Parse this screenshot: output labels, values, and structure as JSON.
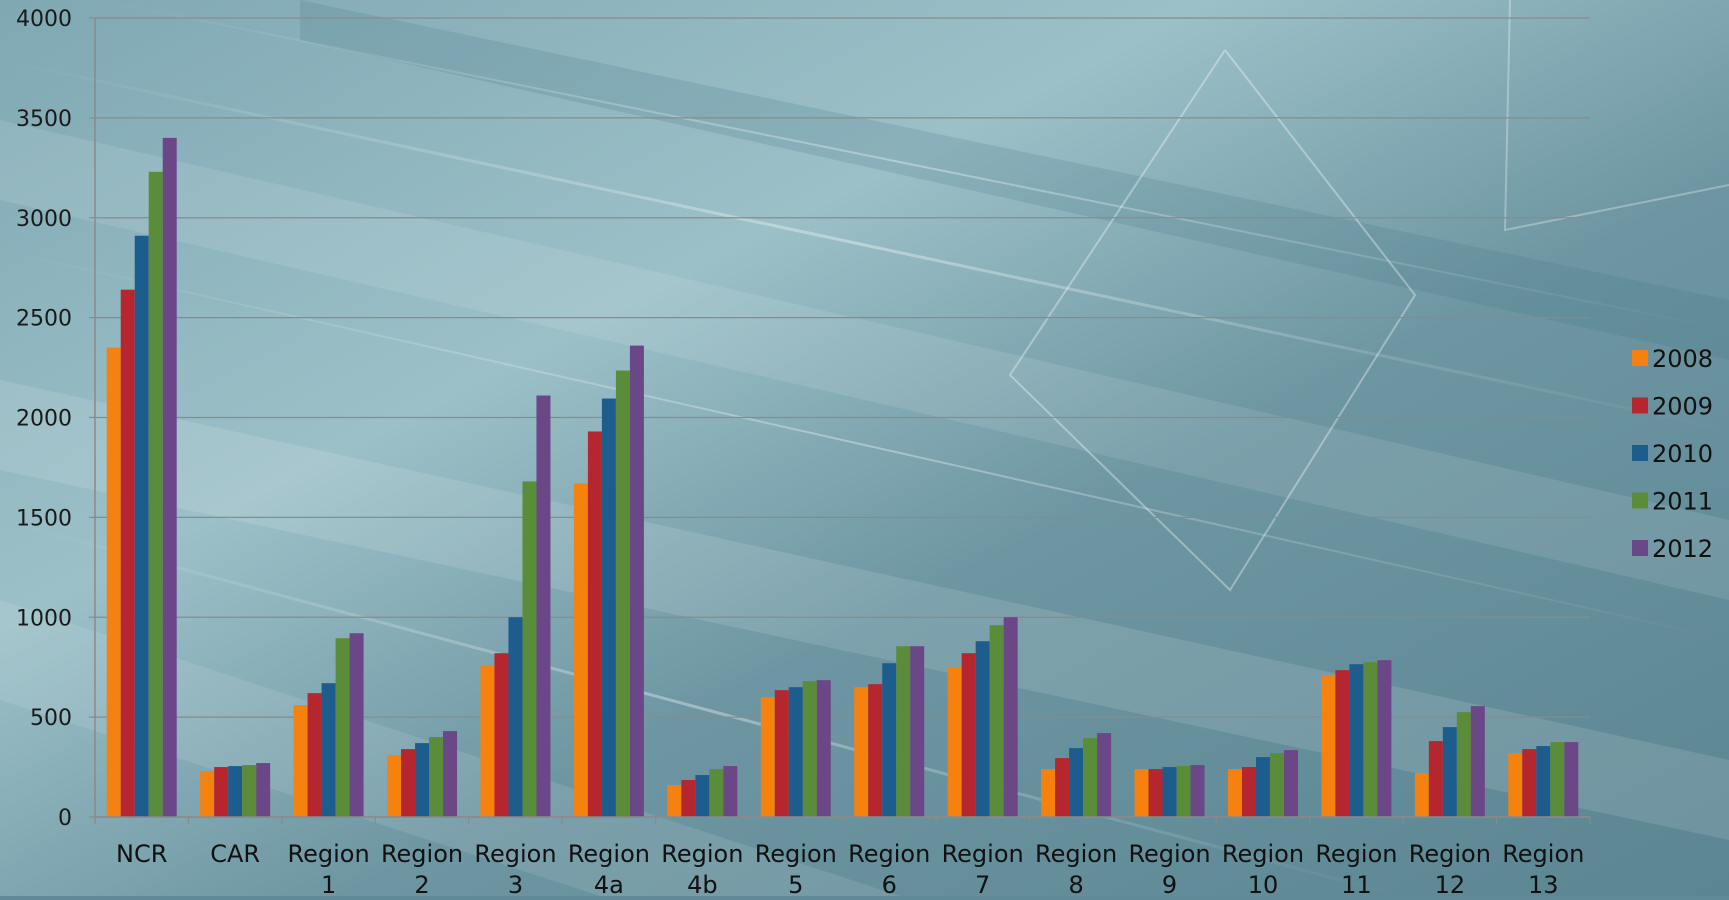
{
  "chart_data": {
    "type": "bar",
    "categories": [
      [
        "NCR"
      ],
      [
        "CAR"
      ],
      [
        "Region",
        "1"
      ],
      [
        "Region",
        "2"
      ],
      [
        "Region",
        "3"
      ],
      [
        "Region",
        "4a"
      ],
      [
        "Region",
        "4b"
      ],
      [
        "Region",
        "5"
      ],
      [
        "Region",
        "6"
      ],
      [
        "Region",
        "7"
      ],
      [
        "Region",
        "8"
      ],
      [
        "Region",
        "9"
      ],
      [
        "Region",
        "10"
      ],
      [
        "Region",
        "11"
      ],
      [
        "Region",
        "12"
      ],
      [
        "Region",
        "13"
      ]
    ],
    "series": [
      {
        "name": "2008",
        "color": "#f5820f",
        "values": [
          2350,
          230,
          560,
          310,
          760,
          1670,
          160,
          600,
          650,
          750,
          240,
          240,
          240,
          710,
          220,
          320
        ]
      },
      {
        "name": "2009",
        "color": "#b5262e",
        "values": [
          2640,
          250,
          620,
          340,
          820,
          1930,
          185,
          635,
          665,
          820,
          295,
          240,
          250,
          735,
          380,
          340
        ]
      },
      {
        "name": "2010",
        "color": "#1d5d8e",
        "values": [
          2910,
          255,
          670,
          370,
          1000,
          2095,
          210,
          650,
          770,
          880,
          345,
          250,
          300,
          765,
          450,
          355
        ]
      },
      {
        "name": "2011",
        "color": "#5b8c3a",
        "values": [
          3230,
          260,
          895,
          400,
          1680,
          2235,
          240,
          680,
          855,
          960,
          395,
          255,
          320,
          775,
          525,
          375
        ]
      },
      {
        "name": "2012",
        "color": "#6b4787",
        "values": [
          3400,
          270,
          920,
          430,
          2110,
          2360,
          255,
          685,
          855,
          1000,
          420,
          260,
          335,
          785,
          555,
          375
        ]
      }
    ],
    "ylim": [
      0,
      4000
    ],
    "yticks": [
      0,
      500,
      1000,
      1500,
      2000,
      2500,
      3000,
      3500,
      4000
    ],
    "grid": true,
    "legend_position": "right"
  }
}
